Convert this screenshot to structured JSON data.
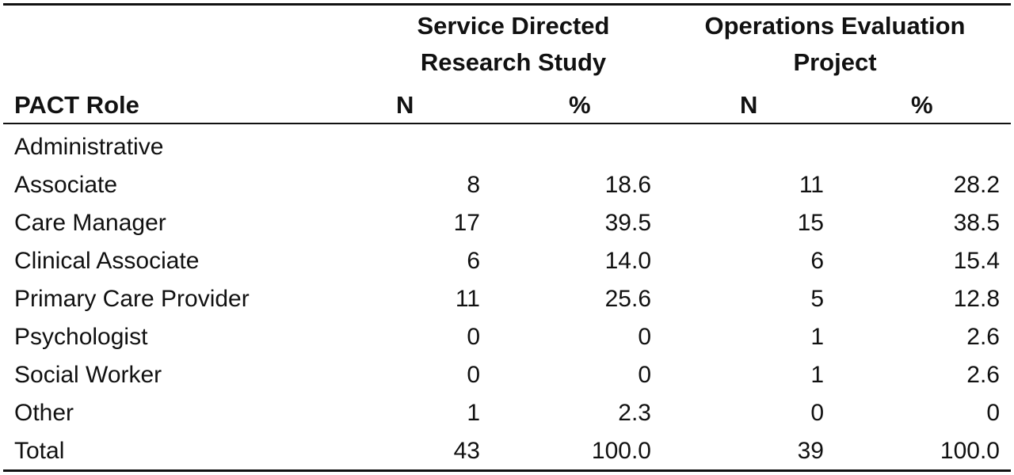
{
  "table": {
    "groups": [
      {
        "label": "Service Directed\nResearch Study"
      },
      {
        "label": "Operations Evaluation\nProject"
      }
    ],
    "columns": {
      "role": "PACT Role",
      "n1": "N",
      "p1": "%",
      "n2": "N",
      "p2": "%"
    },
    "rows": [
      {
        "role": "Administrative",
        "n1": "",
        "p1": "",
        "n2": "",
        "p2": ""
      },
      {
        "role": "Associate",
        "n1": "8",
        "p1": "18.6",
        "n2": "11",
        "p2": "28.2"
      },
      {
        "role": "Care Manager",
        "n1": "17",
        "p1": "39.5",
        "n2": "15",
        "p2": "38.5"
      },
      {
        "role": "Clinical Associate",
        "n1": "6",
        "p1": "14.0",
        "n2": "6",
        "p2": "15.4"
      },
      {
        "role": "Primary Care Provider",
        "n1": "11",
        "p1": "25.6",
        "n2": "5",
        "p2": "12.8"
      },
      {
        "role": "Psychologist",
        "n1": "0",
        "p1": "0",
        "n2": "1",
        "p2": "2.6"
      },
      {
        "role": "Social Worker",
        "n1": "0",
        "p1": "0",
        "n2": "1",
        "p2": "2.6"
      },
      {
        "role": "Other",
        "n1": "1",
        "p1": "2.3",
        "n2": "0",
        "p2": "0"
      },
      {
        "role": "Total",
        "n1": "43",
        "p1": "100.0",
        "n2": "39",
        "p2": "100.0"
      }
    ]
  }
}
